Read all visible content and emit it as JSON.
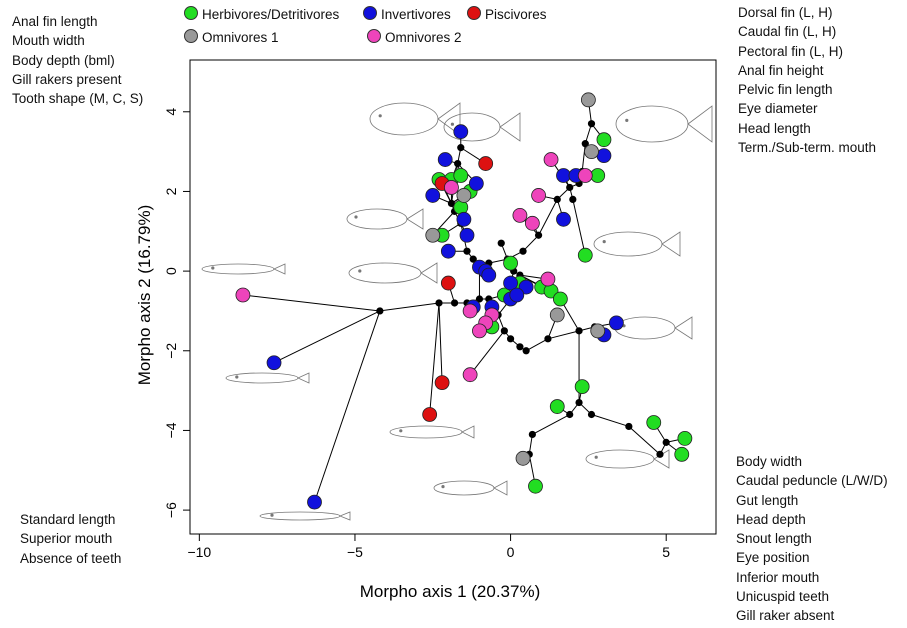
{
  "chart_data": {
    "type": "scatter",
    "xlabel": "Morpho axis 1 (20.37%)",
    "ylabel": "Morpho axis 2 (16.79%)",
    "xlim": [
      -10.3,
      6.6
    ],
    "ylim": [
      -6.6,
      5.3
    ],
    "xticks": [
      -10,
      -5,
      0,
      5
    ],
    "yticks": [
      -6,
      -4,
      -2,
      0,
      2,
      4
    ],
    "grid": false,
    "legend_position": "top",
    "series": [
      {
        "name": "Herbivores/Detritivores",
        "color": "#22dd22",
        "points": [
          [
            -2.3,
            2.3
          ],
          [
            -1.9,
            2.3
          ],
          [
            -1.6,
            2.4
          ],
          [
            -1.3,
            2.0
          ],
          [
            -1.6,
            1.6
          ],
          [
            -2.2,
            0.9
          ],
          [
            0.0,
            0.2
          ],
          [
            0.3,
            -0.3
          ],
          [
            1.0,
            -0.4
          ],
          [
            1.3,
            -0.5
          ],
          [
            1.6,
            -0.7
          ],
          [
            -0.6,
            -1.4
          ],
          [
            -0.2,
            -0.6
          ],
          [
            2.4,
            0.4
          ],
          [
            2.8,
            2.4
          ],
          [
            3.0,
            3.3
          ],
          [
            2.3,
            -2.9
          ],
          [
            1.5,
            -3.4
          ],
          [
            4.6,
            -3.8
          ],
          [
            5.6,
            -4.2
          ],
          [
            5.5,
            -4.6
          ],
          [
            0.8,
            -5.4
          ]
        ]
      },
      {
        "name": "Invertivores",
        "color": "#1111dd",
        "points": [
          [
            -1.6,
            3.5
          ],
          [
            -2.1,
            2.8
          ],
          [
            -1.1,
            2.2
          ],
          [
            -2.5,
            1.9
          ],
          [
            -1.5,
            1.3
          ],
          [
            -1.4,
            0.9
          ],
          [
            -2.0,
            0.5
          ],
          [
            -1.0,
            0.1
          ],
          [
            -0.8,
            0.0
          ],
          [
            -0.7,
            -0.1
          ],
          [
            0.0,
            -0.3
          ],
          [
            0.5,
            -0.4
          ],
          [
            0.0,
            -0.7
          ],
          [
            0.2,
            -0.6
          ],
          [
            -0.6,
            -0.9
          ],
          [
            1.7,
            2.4
          ],
          [
            2.1,
            2.4
          ],
          [
            3.0,
            2.9
          ],
          [
            1.7,
            1.3
          ],
          [
            -1.2,
            -0.9
          ],
          [
            3.0,
            -1.6
          ],
          [
            3.4,
            -1.3
          ],
          [
            -7.6,
            -2.3
          ],
          [
            -6.3,
            -5.8
          ]
        ]
      },
      {
        "name": "Piscivores",
        "color": "#dd1111",
        "points": [
          [
            -2.2,
            2.2
          ],
          [
            -0.8,
            2.7
          ],
          [
            -2.0,
            -0.3
          ],
          [
            -2.2,
            -2.8
          ],
          [
            -2.6,
            -3.6
          ]
        ]
      },
      {
        "name": "Omnivores 1",
        "color": "#999999",
        "points": [
          [
            2.5,
            4.3
          ],
          [
            2.6,
            3.0
          ],
          [
            -1.5,
            1.9
          ],
          [
            -2.5,
            0.9
          ],
          [
            1.5,
            -1.1
          ],
          [
            2.8,
            -1.5
          ],
          [
            0.4,
            -4.7
          ]
        ]
      },
      {
        "name": "Omnivores 2",
        "color": "#ee44bb",
        "points": [
          [
            -8.6,
            -0.6
          ],
          [
            -1.9,
            2.1
          ],
          [
            0.3,
            1.4
          ],
          [
            0.7,
            1.2
          ],
          [
            0.9,
            1.9
          ],
          [
            1.3,
            2.8
          ],
          [
            2.4,
            2.4
          ],
          [
            1.2,
            -0.2
          ],
          [
            -1.3,
            -1.0
          ],
          [
            -0.6,
            -1.1
          ],
          [
            -0.8,
            -1.3
          ],
          [
            -1.0,
            -1.5
          ],
          [
            -1.3,
            -2.6
          ]
        ]
      }
    ],
    "tree_nodes": [
      [
        -4.2,
        -1.0
      ],
      [
        -2.3,
        -0.8
      ],
      [
        -1.8,
        -0.8
      ],
      [
        -1.4,
        -0.8
      ],
      [
        -1.0,
        -0.7
      ],
      [
        -0.7,
        -0.7
      ],
      [
        -0.4,
        -1.1
      ],
      [
        -0.2,
        -1.5
      ],
      [
        0.0,
        -1.7
      ],
      [
        0.3,
        -1.9
      ],
      [
        0.5,
        -2.0
      ],
      [
        -1.6,
        1.2
      ],
      [
        -1.4,
        0.5
      ],
      [
        -1.2,
        0.3
      ],
      [
        -1.0,
        0.1
      ],
      [
        -0.7,
        0.2
      ],
      [
        -0.3,
        0.7
      ],
      [
        -0.1,
        0.3
      ],
      [
        0.1,
        0.0
      ],
      [
        0.3,
        -0.1
      ],
      [
        0.4,
        0.5
      ],
      [
        0.9,
        0.9
      ],
      [
        -1.8,
        1.5
      ],
      [
        -1.9,
        1.7
      ],
      [
        -1.7,
        2.7
      ],
      [
        -1.6,
        3.1
      ],
      [
        1.5,
        1.8
      ],
      [
        1.9,
        2.1
      ],
      [
        2.3,
        2.5
      ],
      [
        2.4,
        3.2
      ],
      [
        2.6,
        3.7
      ],
      [
        2.2,
        2.2
      ],
      [
        2.0,
        1.8
      ],
      [
        1.2,
        -1.7
      ],
      [
        2.2,
        -1.5
      ],
      [
        2.7,
        -1.4
      ],
      [
        1.9,
        -3.6
      ],
      [
        2.2,
        -3.3
      ],
      [
        2.6,
        -3.6
      ],
      [
        3.8,
        -3.9
      ],
      [
        5.0,
        -4.3
      ],
      [
        4.8,
        -4.6
      ],
      [
        0.6,
        -4.6
      ],
      [
        0.7,
        -4.1
      ]
    ],
    "annotations_left_top": [
      "Anal fin length",
      "Mouth width",
      "Body depth (bml)",
      "Gill rakers present",
      "Tooth shape (M, C, S)"
    ],
    "annotations_right_top": [
      "Dorsal fin (L, H)",
      "Caudal fin (L, H)",
      "Pectoral fin (L, H)",
      "Anal fin height",
      "Pelvic fin length",
      "Eye diameter",
      "Head length",
      "Term./Sub-term. mouth"
    ],
    "annotations_left_bottom": [
      "Standard length",
      "Superior mouth",
      "Absence of teeth"
    ],
    "annotations_right_bottom": [
      "Body width",
      "Caudal peduncle (L/W/D)",
      "Gut length",
      "Head depth",
      "Snout length",
      "Eye position",
      "Inferior mouth",
      "Unicuspid teeth",
      "Gill raker absent"
    ]
  }
}
